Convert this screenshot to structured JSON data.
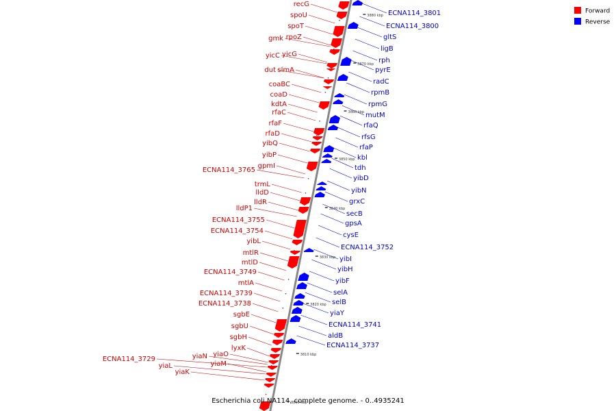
{
  "caption": "Escherichia coli NA114, complete genome. - 0..4935241",
  "legend": [
    {
      "label": "Forward",
      "color": "#ff0000"
    },
    {
      "label": "Reverse",
      "color": "#0000ff"
    }
  ],
  "colors": {
    "forward": "#ff0000",
    "forward_label": "#cc0000",
    "reverse": "#0000ff",
    "reverse_label": "#0000cc",
    "axis": "#888888"
  },
  "ticks": [
    "3880 kbp",
    "3870 kbp",
    "3860 kbp",
    "3850 kbp",
    "3840 kbp",
    "3830 kbp",
    "3820 kbp",
    "3810 kbp",
    "3800 kbp"
  ],
  "forward_genes": [
    "recG",
    "spoU",
    "spoT",
    "gmk",
    "rpoZ",
    "yicC",
    "yicG",
    "dut",
    "slmA",
    "coaBC",
    "coaD",
    "kdtA",
    "rfaC",
    "rfaF",
    "rfaD",
    "yibQ",
    "yibP",
    "gpmI",
    "ECNA114_3765",
    "trmL",
    "lldD",
    "lldR",
    "lldP1",
    "ECNA114_3755",
    "ECNA114_3754",
    "yibL",
    "mtlR",
    "mtlD",
    "ECNA114_3749",
    "mtlA",
    "ECNA114_3739",
    "ECNA114_3738",
    "sgbE",
    "sgbU",
    "sgbH",
    "lyxK",
    "yiaO",
    "yiaN",
    "ECNA114_3729",
    "yiaM",
    "yiaL",
    "yiaK"
  ],
  "reverse_genes": [
    "ECNA114_3801",
    "ECNA114_3800",
    "gltS",
    "ligB",
    "rph",
    "pyrE",
    "radC",
    "rpmB",
    "rpmG",
    "mutM",
    "rfaQ",
    "rfsG",
    "rfaP",
    "kbl",
    "tdh",
    "yibD",
    "yibN",
    "grxC",
    "secB",
    "gpsA",
    "cysE",
    "ECNA114_3752",
    "yibI",
    "yibH",
    "yibF",
    "selA",
    "selB",
    "yiaY",
    "ECNA114_3741",
    "aldB",
    "ECNA114_3737"
  ]
}
